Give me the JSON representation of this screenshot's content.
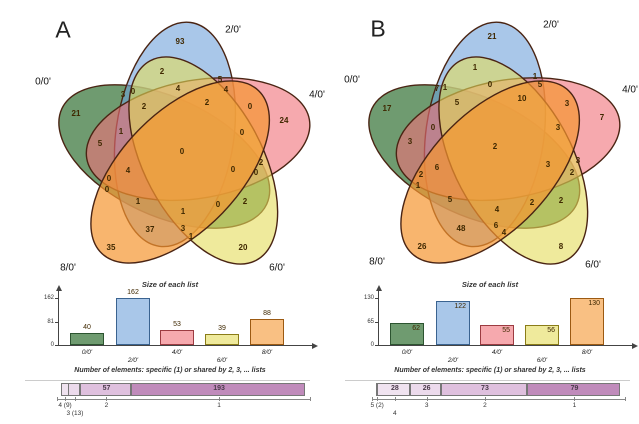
{
  "figure": {
    "panel_letters": [
      "A",
      "B"
    ]
  },
  "colors": {
    "venn_outline": "#4a2413",
    "number_color": "#3f2800",
    "sets": [
      {
        "name": "0/0'",
        "fill": "#0f5811",
        "border": "#2c5430"
      },
      {
        "name": "2/0'",
        "fill": "#70a2da",
        "border": "#3a6390"
      },
      {
        "name": "4/0'",
        "fill": "#f07078",
        "border": "#9c3b41"
      },
      {
        "name": "6/0'",
        "fill": "#e4dc5a",
        "border": "#8a7c18"
      },
      {
        "name": "8/0'",
        "fill": "#f59630",
        "border": "#9c5a12"
      }
    ]
  },
  "chart_data": [
    {
      "panel": "A",
      "type": "venn",
      "set_names": [
        "0/0'",
        "2/0'",
        "4/0'",
        "6/0'",
        "8/0'"
      ],
      "set_labels": [
        {
          "text": "0/0'",
          "x": 18,
          "y": 72
        },
        {
          "text": "2/0'",
          "x": 208,
          "y": 20
        },
        {
          "text": "4/0'",
          "x": 292,
          "y": 85
        },
        {
          "text": "6/0'",
          "x": 252,
          "y": 258
        },
        {
          "text": "8/0'",
          "x": 43,
          "y": 258
        }
      ],
      "regions": [
        {
          "v": 93,
          "x": 155,
          "y": 32
        },
        {
          "v": 2,
          "x": 137,
          "y": 62
        },
        {
          "v": 5,
          "x": 195,
          "y": 70
        },
        {
          "v": 4,
          "x": 201,
          "y": 80
        },
        {
          "v": 3,
          "x": 98,
          "y": 85
        },
        {
          "v": 0,
          "x": 108,
          "y": 82
        },
        {
          "v": 4,
          "x": 153,
          "y": 79
        },
        {
          "v": 2,
          "x": 119,
          "y": 97
        },
        {
          "v": 2,
          "x": 182,
          "y": 93
        },
        {
          "v": 0,
          "x": 225,
          "y": 97
        },
        {
          "v": 21,
          "x": 51,
          "y": 104
        },
        {
          "v": 24,
          "x": 259,
          "y": 111
        },
        {
          "v": 1,
          "x": 96,
          "y": 122
        },
        {
          "v": 0,
          "x": 217,
          "y": 123
        },
        {
          "v": 5,
          "x": 75,
          "y": 134
        },
        {
          "v": 0,
          "x": 157,
          "y": 142
        },
        {
          "v": 0,
          "x": 208,
          "y": 160
        },
        {
          "v": 2,
          "x": 236,
          "y": 153
        },
        {
          "v": 0,
          "x": 231,
          "y": 163
        },
        {
          "v": 4,
          "x": 103,
          "y": 161
        },
        {
          "v": 0,
          "x": 84,
          "y": 169
        },
        {
          "v": 0,
          "x": 82,
          "y": 180
        },
        {
          "v": 1,
          "x": 113,
          "y": 192
        },
        {
          "v": 0,
          "x": 193,
          "y": 195
        },
        {
          "v": 2,
          "x": 220,
          "y": 192
        },
        {
          "v": 1,
          "x": 158,
          "y": 202
        },
        {
          "v": 37,
          "x": 125,
          "y": 220
        },
        {
          "v": 3,
          "x": 158,
          "y": 219
        },
        {
          "v": 1,
          "x": 166,
          "y": 227
        },
        {
          "v": 35,
          "x": 86,
          "y": 238
        },
        {
          "v": 20,
          "x": 218,
          "y": 238
        }
      ],
      "size_chart": {
        "title": "Size of each list",
        "yticks": [
          0,
          81,
          162
        ],
        "ymax": 162,
        "categories": [
          "0/0'",
          "2/0'",
          "4/0'",
          "6/0'",
          "8/0'"
        ],
        "values": [
          40,
          162,
          53,
          39,
          88
        ],
        "label_position": "above"
      },
      "overlap_title": "Number of elements: specific (1) or shared by 2, 3, ... lists",
      "overlap_chart": {
        "total": 272,
        "segments": [
          {
            "tick": "4 (9)",
            "value": 9,
            "row": 0,
            "color": "#f0e3f0",
            "show_value": false
          },
          {
            "tick": "3 (13)",
            "value": 13,
            "row": 1,
            "color": "#ecdaec",
            "show_value": false
          },
          {
            "tick": "2",
            "value": 57,
            "row": 0,
            "color": "#dfc0de",
            "show_value": true
          },
          {
            "tick": "1",
            "value": 193,
            "row": 0,
            "color": "#c08bbb",
            "show_value": true
          }
        ]
      }
    },
    {
      "panel": "B",
      "type": "venn",
      "set_names": [
        "0/0'",
        "2/0'",
        "4/0'",
        "6/0'",
        "8/0'"
      ],
      "set_labels": [
        {
          "text": "0/0'",
          "x": 17,
          "y": 70
        },
        {
          "text": "2/0'",
          "x": 216,
          "y": 15
        },
        {
          "text": "4/0'",
          "x": 295,
          "y": 80
        },
        {
          "text": "6/0'",
          "x": 258,
          "y": 255
        },
        {
          "text": "8/0'",
          "x": 42,
          "y": 252
        }
      ],
      "regions": [
        {
          "v": 21,
          "x": 157,
          "y": 27
        },
        {
          "v": 1,
          "x": 140,
          "y": 58
        },
        {
          "v": 1,
          "x": 200,
          "y": 67
        },
        {
          "v": 5,
          "x": 205,
          "y": 75
        },
        {
          "v": 7,
          "x": 102,
          "y": 79
        },
        {
          "v": 1,
          "x": 110,
          "y": 78
        },
        {
          "v": 0,
          "x": 155,
          "y": 75
        },
        {
          "v": 5,
          "x": 122,
          "y": 93
        },
        {
          "v": 10,
          "x": 187,
          "y": 89
        },
        {
          "v": 3,
          "x": 232,
          "y": 94
        },
        {
          "v": 17,
          "x": 52,
          "y": 99
        },
        {
          "v": 7,
          "x": 267,
          "y": 108
        },
        {
          "v": 0,
          "x": 98,
          "y": 118
        },
        {
          "v": 3,
          "x": 223,
          "y": 118
        },
        {
          "v": 3,
          "x": 75,
          "y": 132
        },
        {
          "v": 2,
          "x": 160,
          "y": 137
        },
        {
          "v": 6,
          "x": 102,
          "y": 158
        },
        {
          "v": 3,
          "x": 213,
          "y": 155
        },
        {
          "v": 3,
          "x": 243,
          "y": 151
        },
        {
          "v": 2,
          "x": 237,
          "y": 163
        },
        {
          "v": 2,
          "x": 86,
          "y": 165
        },
        {
          "v": 1,
          "x": 83,
          "y": 176
        },
        {
          "v": 5,
          "x": 115,
          "y": 190
        },
        {
          "v": 2,
          "x": 197,
          "y": 193
        },
        {
          "v": 2,
          "x": 226,
          "y": 191
        },
        {
          "v": 4,
          "x": 162,
          "y": 200
        },
        {
          "v": 48,
          "x": 126,
          "y": 219
        },
        {
          "v": 6,
          "x": 161,
          "y": 216
        },
        {
          "v": 4,
          "x": 169,
          "y": 223
        },
        {
          "v": 26,
          "x": 87,
          "y": 237
        },
        {
          "v": 8,
          "x": 226,
          "y": 237
        }
      ],
      "size_chart": {
        "title": "Size of each list",
        "yticks": [
          0,
          65,
          130
        ],
        "ymax": 130,
        "categories": [
          "0/0'",
          "2/0'",
          "4/0'",
          "6/0'",
          "8/0'"
        ],
        "values": [
          62,
          122,
          55,
          56,
          130
        ],
        "label_position": "inside"
      },
      "overlap_title": "Number of elements: specific (1) or shared by 2, 3, ... lists",
      "overlap_chart": {
        "total": 208,
        "segments": [
          {
            "tick": "5 (2)",
            "value": 2,
            "row": 0,
            "color": "#f5eef5",
            "show_value": false
          },
          {
            "tick": "4",
            "value": 28,
            "row": 1,
            "color": "#f0e3f0",
            "show_value": true
          },
          {
            "tick": "3",
            "value": 26,
            "row": 0,
            "color": "#ecdaec",
            "show_value": true
          },
          {
            "tick": "2",
            "value": 73,
            "row": 0,
            "color": "#dfc0de",
            "show_value": true
          },
          {
            "tick": "1",
            "value": 79,
            "row": 0,
            "color": "#c08bbb",
            "show_value": true
          }
        ]
      }
    }
  ]
}
